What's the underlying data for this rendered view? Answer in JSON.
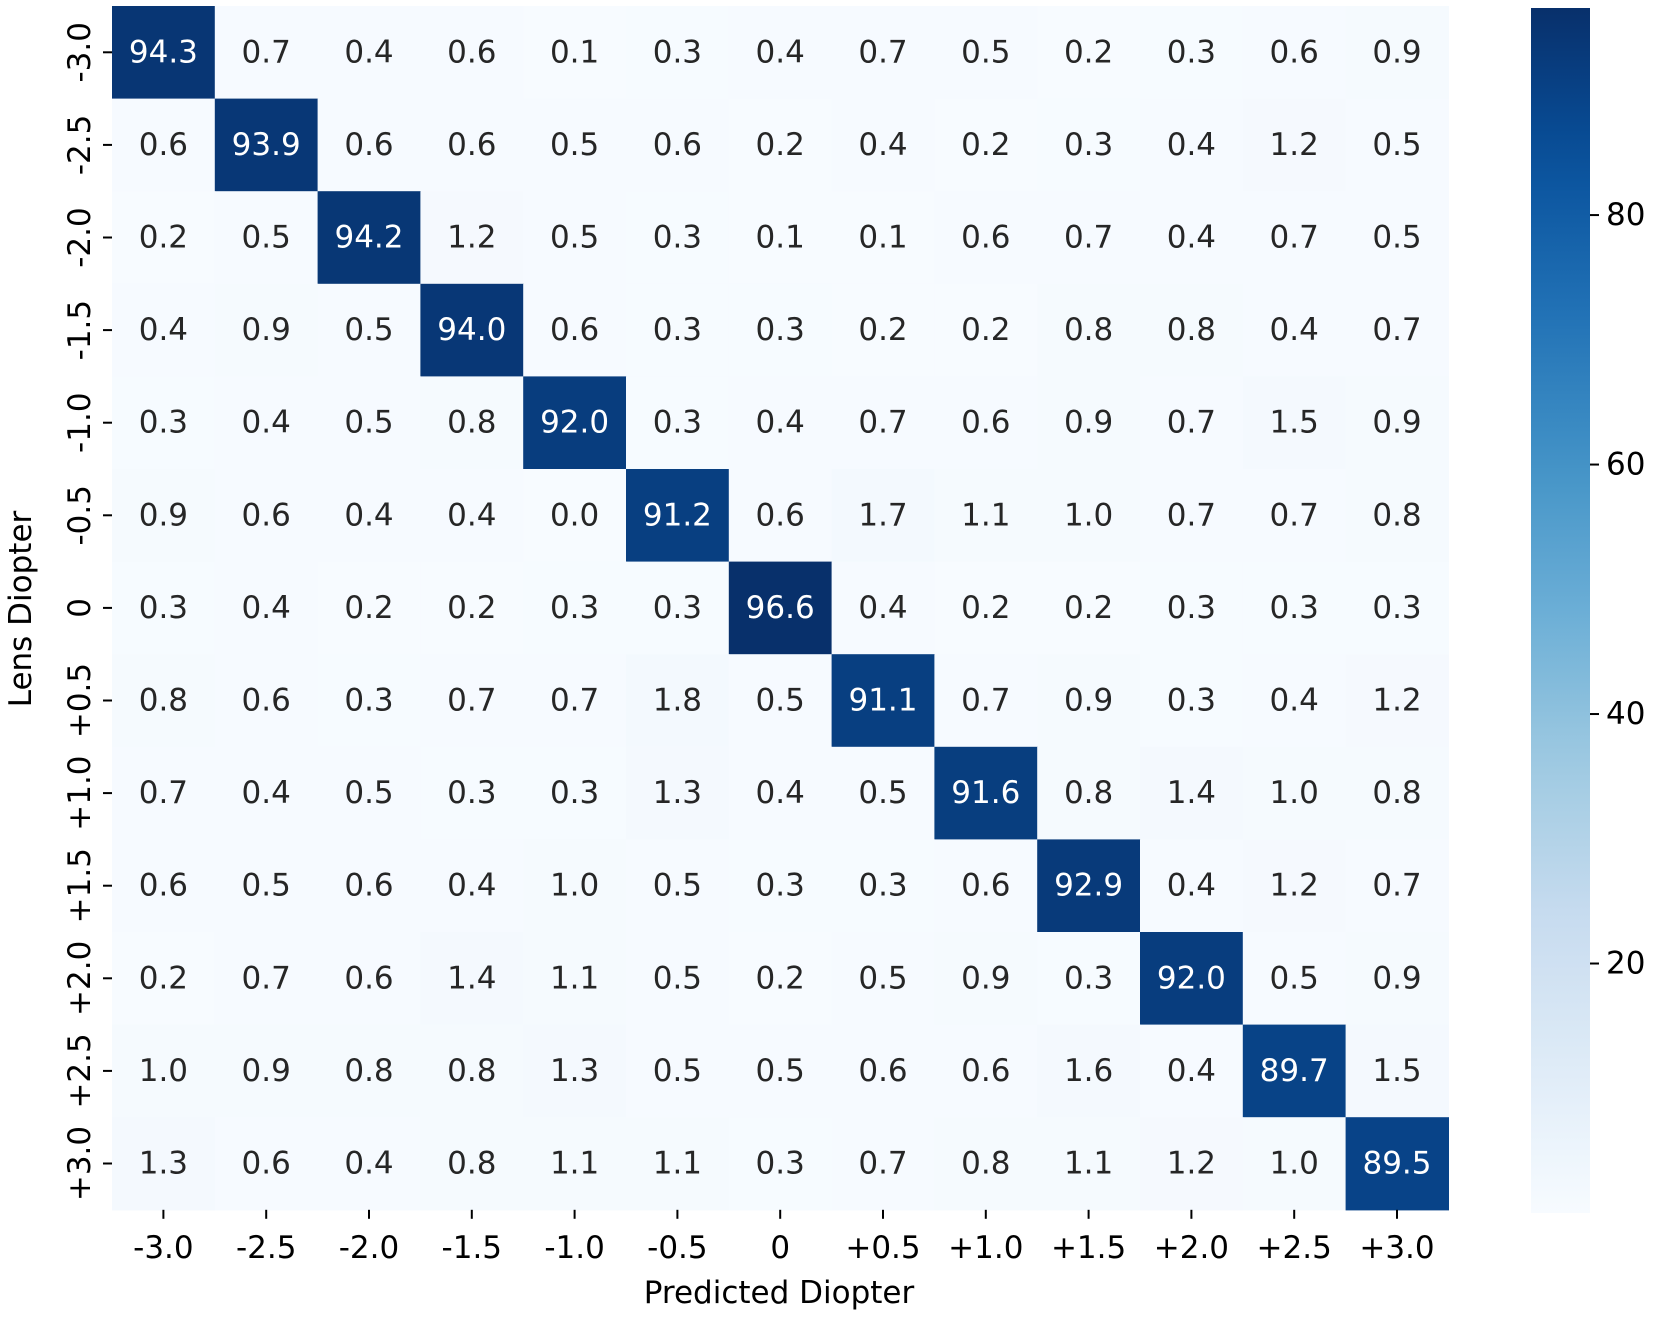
{
  "chart_data": {
    "type": "heatmap",
    "xlabel": "Predicted Diopter",
    "ylabel": "Lens Diopter",
    "x_categories": [
      "-3.0",
      "-2.5",
      "-2.0",
      "-1.5",
      "-1.0",
      "-0.5",
      "0",
      "+0.5",
      "+1.0",
      "+1.5",
      "+2.0",
      "+2.5",
      "+3.0"
    ],
    "y_categories": [
      "-3.0",
      "-2.5",
      "-2.0",
      "-1.5",
      "-1.0",
      "-0.5",
      "0",
      "+0.5",
      "+1.0",
      "+1.5",
      "+2.0",
      "+2.5",
      "+3.0"
    ],
    "values": [
      [
        "94.3",
        "0.7",
        "0.4",
        "0.6",
        "0.1",
        "0.3",
        "0.4",
        "0.7",
        "0.5",
        "0.2",
        "0.3",
        "0.6",
        "0.9"
      ],
      [
        "0.6",
        "93.9",
        "0.6",
        "0.6",
        "0.5",
        "0.6",
        "0.2",
        "0.4",
        "0.2",
        "0.3",
        "0.4",
        "1.2",
        "0.5"
      ],
      [
        "0.2",
        "0.5",
        "94.2",
        "1.2",
        "0.5",
        "0.3",
        "0.1",
        "0.1",
        "0.6",
        "0.7",
        "0.4",
        "0.7",
        "0.5"
      ],
      [
        "0.4",
        "0.9",
        "0.5",
        "94.0",
        "0.6",
        "0.3",
        "0.3",
        "0.2",
        "0.2",
        "0.8",
        "0.8",
        "0.4",
        "0.7"
      ],
      [
        "0.3",
        "0.4",
        "0.5",
        "0.8",
        "92.0",
        "0.3",
        "0.4",
        "0.7",
        "0.6",
        "0.9",
        "0.7",
        "1.5",
        "0.9"
      ],
      [
        "0.9",
        "0.6",
        "0.4",
        "0.4",
        "0.0",
        "91.2",
        "0.6",
        "1.7",
        "1.1",
        "1.0",
        "0.7",
        "0.7",
        "0.8"
      ],
      [
        "0.3",
        "0.4",
        "0.2",
        "0.2",
        "0.3",
        "0.3",
        "96.6",
        "0.4",
        "0.2",
        "0.2",
        "0.3",
        "0.3",
        "0.3"
      ],
      [
        "0.8",
        "0.6",
        "0.3",
        "0.7",
        "0.7",
        "1.8",
        "0.5",
        "91.1",
        "0.7",
        "0.9",
        "0.3",
        "0.4",
        "1.2"
      ],
      [
        "0.7",
        "0.4",
        "0.5",
        "0.3",
        "0.3",
        "1.3",
        "0.4",
        "0.5",
        "91.6",
        "0.8",
        "1.4",
        "1.0",
        "0.8"
      ],
      [
        "0.6",
        "0.5",
        "0.6",
        "0.4",
        "1.0",
        "0.5",
        "0.3",
        "0.3",
        "0.6",
        "92.9",
        "0.4",
        "1.2",
        "0.7"
      ],
      [
        "0.2",
        "0.7",
        "0.6",
        "1.4",
        "1.1",
        "0.5",
        "0.2",
        "0.5",
        "0.9",
        "0.3",
        "92.0",
        "0.5",
        "0.9"
      ],
      [
        "1.0",
        "0.9",
        "0.8",
        "0.8",
        "1.3",
        "0.5",
        "0.5",
        "0.6",
        "0.6",
        "1.6",
        "0.4",
        "89.7",
        "1.5"
      ],
      [
        "1.3",
        "0.6",
        "0.4",
        "0.8",
        "1.1",
        "1.1",
        "0.3",
        "0.7",
        "0.8",
        "1.1",
        "1.2",
        "1.0",
        "89.5"
      ]
    ],
    "colorbar": {
      "colormap": "Blues",
      "range": [
        0.0,
        96.6
      ],
      "ticks": [
        "20",
        "40",
        "60",
        "80"
      ],
      "tick_values": [
        20,
        40,
        60,
        80
      ]
    }
  }
}
